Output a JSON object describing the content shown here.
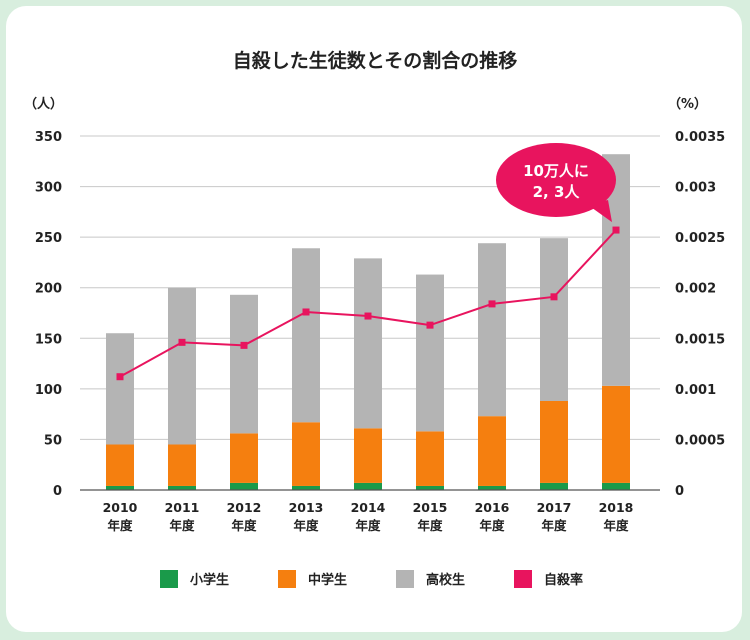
{
  "chart_data": {
    "type": "bar",
    "stacked": true,
    "title": "自殺した生徒数とその割合の推移",
    "left_axis_unit": "（人）",
    "right_axis_unit": "（%）",
    "categories": [
      {
        "year": "2010",
        "suffix": "年度"
      },
      {
        "year": "2011",
        "suffix": "年度"
      },
      {
        "year": "2012",
        "suffix": "年度"
      },
      {
        "year": "2013",
        "suffix": "年度"
      },
      {
        "year": "2014",
        "suffix": "年度"
      },
      {
        "year": "2015",
        "suffix": "年度"
      },
      {
        "year": "2016",
        "suffix": "年度"
      },
      {
        "year": "2017",
        "suffix": "年度"
      },
      {
        "year": "2018",
        "suffix": "年度"
      }
    ],
    "ylim": [
      0,
      350
    ],
    "yticks": [
      "0",
      "50",
      "100",
      "150",
      "200",
      "250",
      "300",
      "350"
    ],
    "y2lim": [
      0,
      0.0035
    ],
    "y2ticks": [
      "0",
      "0.0005",
      "0.001",
      "0.0015",
      "0.002",
      "0.0025",
      "0.003",
      "0.0035"
    ],
    "series": [
      {
        "name": "小学生",
        "color": "#1a9a4a",
        "values": [
          4,
          4,
          7,
          4,
          7,
          4,
          4,
          7,
          7
        ]
      },
      {
        "name": "中学生",
        "color": "#f57f0f",
        "values": [
          41,
          41,
          49,
          63,
          54,
          54,
          69,
          81,
          96
        ]
      },
      {
        "name": "高校生",
        "color": "#b4b4b4",
        "values": [
          110,
          155,
          137,
          172,
          168,
          155,
          171,
          161,
          229
        ]
      }
    ],
    "line_series": {
      "name": "自殺率",
      "color": "#e8145e",
      "axis": "right",
      "values": [
        0.00112,
        0.00146,
        0.00143,
        0.00176,
        0.00172,
        0.00163,
        0.00184,
        0.00191,
        0.00257
      ]
    },
    "callout": {
      "line1": "10万人に",
      "line2": "2, 3人",
      "color": "#e8145e"
    },
    "grid": "horizontal",
    "legend_position": "bottom"
  }
}
